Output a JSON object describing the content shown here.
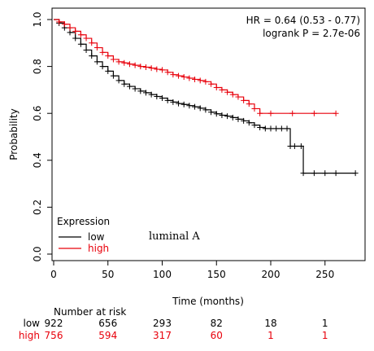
{
  "chart_data": {
    "type": "line",
    "subtype": "kaplan-meier",
    "xlabel": "Time (months)",
    "ylabel": "Probability",
    "xlim": [
      0,
      280
    ],
    "ylim": [
      0,
      1.0
    ],
    "x_ticks": [
      0,
      50,
      100,
      150,
      200,
      250
    ],
    "y_ticks": [
      0.0,
      0.2,
      0.4,
      0.6,
      0.8,
      1.0
    ],
    "grid": false,
    "annotations": {
      "hr": "HR = 0.64 (0.53 - 0.77)",
      "logrank": "logrank P = 2.7e-06",
      "note": "luminal A"
    },
    "legend": {
      "title": "Expression",
      "placement": "bottom-left",
      "entries": [
        {
          "label": "low",
          "color": "#000000"
        },
        {
          "label": "high",
          "color": "#e8000b"
        }
      ]
    },
    "series": [
      {
        "name": "low",
        "color": "#000000",
        "x": [
          0,
          5,
          10,
          15,
          20,
          25,
          30,
          35,
          40,
          45,
          50,
          55,
          60,
          65,
          70,
          75,
          80,
          85,
          90,
          95,
          100,
          105,
          110,
          115,
          120,
          125,
          130,
          135,
          140,
          145,
          150,
          155,
          160,
          165,
          170,
          175,
          180,
          185,
          190,
          195,
          200,
          205,
          210,
          215,
          218,
          222,
          228,
          230,
          240,
          250,
          260,
          278
        ],
        "y": [
          1.0,
          0.985,
          0.965,
          0.945,
          0.92,
          0.895,
          0.87,
          0.845,
          0.82,
          0.8,
          0.78,
          0.76,
          0.74,
          0.725,
          0.715,
          0.705,
          0.695,
          0.688,
          0.68,
          0.672,
          0.665,
          0.655,
          0.648,
          0.642,
          0.638,
          0.633,
          0.628,
          0.622,
          0.615,
          0.605,
          0.598,
          0.592,
          0.588,
          0.582,
          0.575,
          0.568,
          0.56,
          0.55,
          0.54,
          0.535,
          0.535,
          0.535,
          0.535,
          0.535,
          0.46,
          0.46,
          0.46,
          0.345,
          0.345,
          0.345,
          0.345,
          0.345
        ]
      },
      {
        "name": "high",
        "color": "#e8000b",
        "x": [
          0,
          5,
          10,
          15,
          20,
          25,
          30,
          35,
          40,
          45,
          50,
          55,
          60,
          65,
          70,
          75,
          80,
          85,
          90,
          95,
          100,
          105,
          110,
          115,
          120,
          125,
          130,
          135,
          140,
          145,
          150,
          155,
          160,
          165,
          170,
          175,
          180,
          185,
          190,
          200,
          220,
          240,
          260
        ],
        "y": [
          1.0,
          0.99,
          0.98,
          0.965,
          0.95,
          0.935,
          0.92,
          0.9,
          0.88,
          0.86,
          0.845,
          0.83,
          0.82,
          0.815,
          0.81,
          0.805,
          0.8,
          0.797,
          0.793,
          0.788,
          0.785,
          0.775,
          0.765,
          0.76,
          0.755,
          0.75,
          0.745,
          0.74,
          0.735,
          0.725,
          0.71,
          0.7,
          0.69,
          0.68,
          0.67,
          0.655,
          0.64,
          0.62,
          0.6,
          0.6,
          0.6,
          0.6,
          0.6
        ]
      }
    ],
    "risk_table": {
      "title": "Number at risk",
      "times": [
        0,
        50,
        100,
        150,
        200,
        250
      ],
      "rows": [
        {
          "label": "low",
          "color": "#000000",
          "values": [
            "922",
            "656",
            "293",
            "82",
            "18",
            "1"
          ]
        },
        {
          "label": "high",
          "color": "#e8000b",
          "values": [
            "756",
            "594",
            "317",
            "60",
            "1",
            "1"
          ]
        }
      ]
    }
  }
}
